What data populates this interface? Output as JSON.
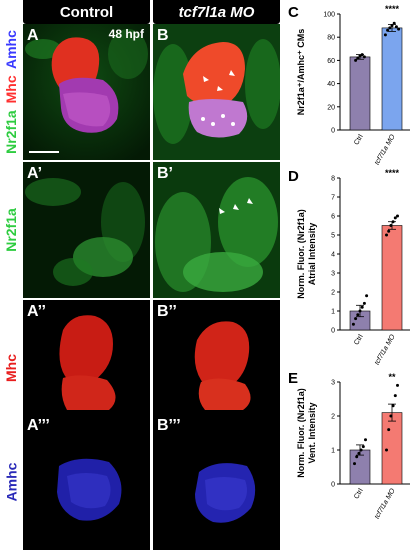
{
  "headers": {
    "control": "Control",
    "treatment": "tcf7l1a MO"
  },
  "row_labels": {
    "row1": [
      "Nr2f1a",
      "Mhc",
      "Amhc"
    ],
    "row1_colors": [
      "#2ecc40",
      "#ff3030",
      "#3a3aff"
    ],
    "row2": "Nr2f1a",
    "row2_color": "#2ecc40",
    "row3": "Mhc",
    "row3_color": "#e81e1e",
    "row4": "Amhc",
    "row4_color": "#2a2ab8"
  },
  "panels": {
    "a": "A",
    "b": "B",
    "a1": "A’",
    "b1": "B’",
    "a2": "A’’",
    "b2": "B’’",
    "a3": "A’’’",
    "b3": "B’’’",
    "stage": "48 hpf"
  },
  "chart_letters": {
    "c": "C",
    "d": "D",
    "e": "E"
  },
  "chart_data": [
    {
      "type": "bar",
      "categories": [
        "Ctrl",
        "tcf7l1a MO"
      ],
      "values": [
        63,
        88
      ],
      "errors": [
        2,
        3
      ],
      "points": [
        [
          60,
          62,
          64,
          65,
          63
        ],
        [
          82,
          86,
          88,
          90,
          92,
          89,
          87
        ]
      ],
      "colors": [
        "#8e80ad",
        "#7ba5ee"
      ],
      "ylabel": "Nr2f1a⁺/Amhc⁺ CMs",
      "ylim": [
        0,
        100
      ],
      "yticks": [
        "0",
        "20",
        "40",
        "60",
        "80",
        "100"
      ],
      "significance": "****"
    },
    {
      "type": "bar",
      "categories": [
        "Ctrl",
        "tcf7l1a MO"
      ],
      "values": [
        1.0,
        5.5
      ],
      "errors": [
        0.3,
        0.2
      ],
      "points": [
        [
          0.3,
          0.6,
          0.8,
          1.0,
          1.2,
          1.4,
          1.8
        ],
        [
          5.0,
          5.2,
          5.5,
          5.7,
          5.9,
          6.0
        ]
      ],
      "colors": [
        "#8e80ad",
        "#f47a72"
      ],
      "ylabel": [
        "Norm. Fluor. (Nr2f1a)",
        "Atrial Intensity"
      ],
      "ylim": [
        0,
        8
      ],
      "yticks": [
        "0",
        "1",
        "2",
        "3",
        "4",
        "5",
        "6",
        "7",
        "8"
      ],
      "significance": "****"
    },
    {
      "type": "bar",
      "categories": [
        "Ctrl",
        "tcf7l1a MO"
      ],
      "values": [
        1.0,
        2.1
      ],
      "errors": [
        0.15,
        0.25
      ],
      "points": [
        [
          0.6,
          0.8,
          0.9,
          1.0,
          1.1,
          1.3
        ],
        [
          1.0,
          1.6,
          2.0,
          2.3,
          2.6,
          2.9
        ]
      ],
      "colors": [
        "#8e80ad",
        "#f47a72"
      ],
      "ylabel": [
        "Norm. Fluor. (Nr2f1a)",
        "Vent. Intensity"
      ],
      "ylim": [
        0,
        3
      ],
      "yticks": [
        "0",
        "1",
        "2",
        "3"
      ],
      "significance": "**"
    }
  ]
}
